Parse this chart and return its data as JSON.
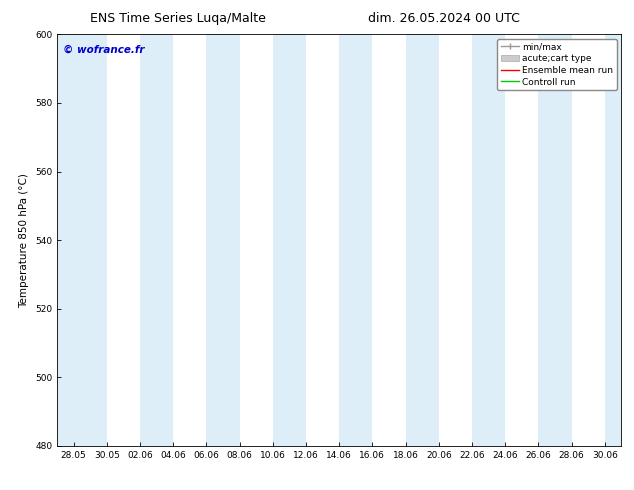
{
  "title_left": "ENS Time Series Luqa/Malte",
  "title_right": "dim. 26.05.2024 00 UTC",
  "ylabel": "Temperature 850 hPa (°C)",
  "ylim": [
    480,
    600
  ],
  "yticks": [
    480,
    500,
    520,
    540,
    560,
    580,
    600
  ],
  "xlabel_ticks": [
    "28.05",
    "30.05",
    "02.06",
    "04.06",
    "06.06",
    "08.06",
    "10.06",
    "12.06",
    "14.06",
    "16.06",
    "18.06",
    "20.06",
    "22.06",
    "24.06",
    "26.06",
    "28.06",
    "30.06"
  ],
  "watermark": "© wofrance.fr",
  "watermark_color": "#0000cc",
  "bg_color": "#ffffff",
  "plot_bg_color": "#ffffff",
  "shaded_band_color": "#ddeef8",
  "legend_labels": [
    "min/max",
    "acute;cart type",
    "Ensemble mean run",
    "Controll run"
  ],
  "title_fontsize": 9,
  "tick_fontsize": 6.5,
  "ylabel_fontsize": 7.5,
  "watermark_fontsize": 7.5,
  "legend_fontsize": 6.5
}
